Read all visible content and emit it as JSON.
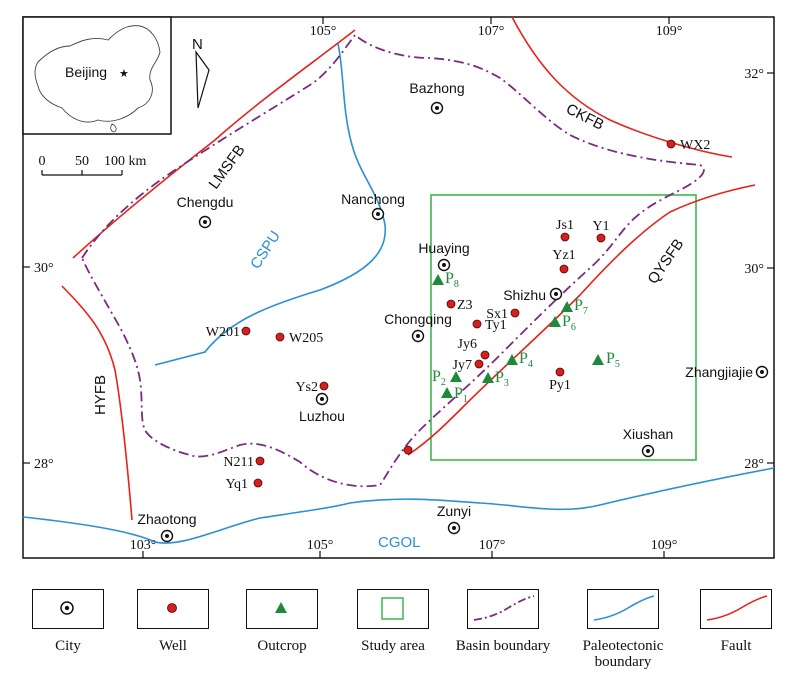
{
  "colors": {
    "fault": "#e8211b",
    "paleotectonic": "#2a8fd6",
    "basin": "#7a2a80",
    "study_area": "#3db84a",
    "well": "#d42020",
    "outcrop": "#1d8a3a",
    "outcrop_label": "#1d8a3a",
    "text": "#111111"
  },
  "grid": {
    "top_ticks": [
      "105°",
      "107°",
      "109°"
    ],
    "bottom_ticks": [
      "103°",
      "105°",
      "107°",
      "109°"
    ],
    "left_ticks": [
      "30°",
      "28°"
    ],
    "right_ticks": [
      "32°",
      "30°",
      "28°"
    ]
  },
  "inset": {
    "label": "Beijing",
    "marker": "★"
  },
  "north": {
    "label": "N"
  },
  "scale_bar": {
    "labels": [
      "0",
      "50",
      "100 km"
    ]
  },
  "cities": [
    {
      "name": "Bazhong"
    },
    {
      "name": "Chengdu"
    },
    {
      "name": "Nanchong"
    },
    {
      "name": "Huaying"
    },
    {
      "name": "Shizhu"
    },
    {
      "name": "Chongqing"
    },
    {
      "name": "Luzhou"
    },
    {
      "name": "Zhangjiajie"
    },
    {
      "name": "Xiushan"
    },
    {
      "name": "Zhaotong"
    },
    {
      "name": "Zunyi"
    }
  ],
  "wells": [
    {
      "name": "WX2"
    },
    {
      "name": "Js1"
    },
    {
      "name": "Y1"
    },
    {
      "name": "Yz1"
    },
    {
      "name": "Z3"
    },
    {
      "name": "Sx1"
    },
    {
      "name": "Ty1"
    },
    {
      "name": "W201"
    },
    {
      "name": "W205"
    },
    {
      "name": "Jy6"
    },
    {
      "name": "Jy7"
    },
    {
      "name": "Py1"
    },
    {
      "name": "Ys2"
    },
    {
      "name": "N211"
    },
    {
      "name": "Yq1"
    }
  ],
  "outcrops": [
    {
      "base": "P",
      "sub": "8"
    },
    {
      "base": "P",
      "sub": "7"
    },
    {
      "base": "P",
      "sub": "6"
    },
    {
      "base": "P",
      "sub": "5"
    },
    {
      "base": "P",
      "sub": "4"
    },
    {
      "base": "P",
      "sub": "3"
    },
    {
      "base": "P",
      "sub": "2"
    },
    {
      "base": "P",
      "sub": "1"
    }
  ],
  "structures": {
    "faults": [
      "LMSFB",
      "CKFB",
      "QYSFB",
      "HYFB"
    ],
    "paleo": [
      "CSPU",
      "CGOL"
    ]
  },
  "legend": {
    "items": [
      {
        "label": "City"
      },
      {
        "label": "Well"
      },
      {
        "label": "Outcrop"
      },
      {
        "label": "Study area"
      },
      {
        "label": "Basin boundary"
      },
      {
        "label": "Paleotectonic boundary"
      },
      {
        "label": "Fault"
      }
    ]
  }
}
